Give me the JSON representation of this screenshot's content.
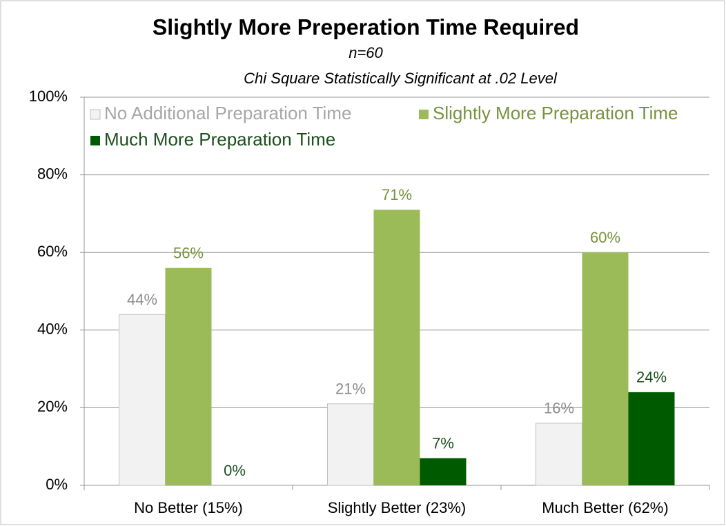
{
  "chart_data": {
    "type": "bar",
    "title": "Slightly More Preperation Time Required",
    "subtitle": "n=60",
    "annotation": "Chi Square Statistically Significant at .02 Level",
    "categories": [
      "No Better (15%)",
      "Slightly Better (23%)",
      "Much Better (62%)"
    ],
    "series": [
      {
        "name": "No Additional Preparation Time",
        "color": "#f2f2f2",
        "label_color": "#8c8c8c",
        "values": [
          44,
          21,
          16
        ],
        "value_labels": [
          "44%",
          "21%",
          "16%"
        ]
      },
      {
        "name": "Slightly More Preparation Time",
        "color": "#9bbb59",
        "label_color": "#76923c",
        "values": [
          56,
          71,
          60
        ],
        "value_labels": [
          "56%",
          "71%",
          "60%"
        ]
      },
      {
        "name": "Much More Preparation Time",
        "color": "#005a00",
        "label_color": "#1d4f1d",
        "values": [
          0,
          7,
          24
        ],
        "value_labels": [
          "0%",
          "7%",
          "24%"
        ]
      }
    ],
    "ylim": [
      0,
      100
    ],
    "yticks": [
      {
        "value": 0,
        "label": "0%"
      },
      {
        "value": 20,
        "label": "20%"
      },
      {
        "value": 40,
        "label": "40%"
      },
      {
        "value": 60,
        "label": "60%"
      },
      {
        "value": 80,
        "label": "80%"
      },
      {
        "value": 100,
        "label": "100%"
      }
    ],
    "grid": true,
    "legend": "top-left"
  }
}
